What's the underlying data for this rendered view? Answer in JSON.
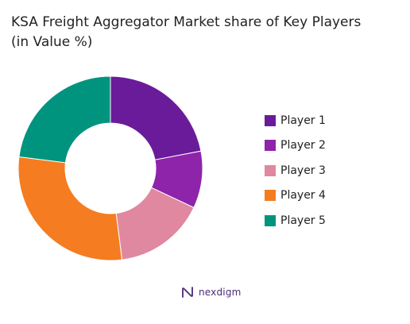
{
  "chart_data": {
    "type": "pie",
    "variant": "donut",
    "title_line1": "KSA Freight Aggregator Market share of Key Players",
    "title_line2": "(in Value %)",
    "categories": [
      "Player 1",
      "Player 2",
      "Player 3",
      "Player 4",
      "Player 5"
    ],
    "values": [
      22,
      10,
      16,
      29,
      23
    ],
    "unit": "%",
    "colors": [
      "#6a1b9a",
      "#8e24aa",
      "#e088a0",
      "#f57c20",
      "#00947f"
    ],
    "legend_position": "right",
    "start_angle_deg": 0,
    "direction": "clockwise"
  },
  "watermark": {
    "text": "nexdigm",
    "icon": "nexdigm-logo-icon"
  }
}
